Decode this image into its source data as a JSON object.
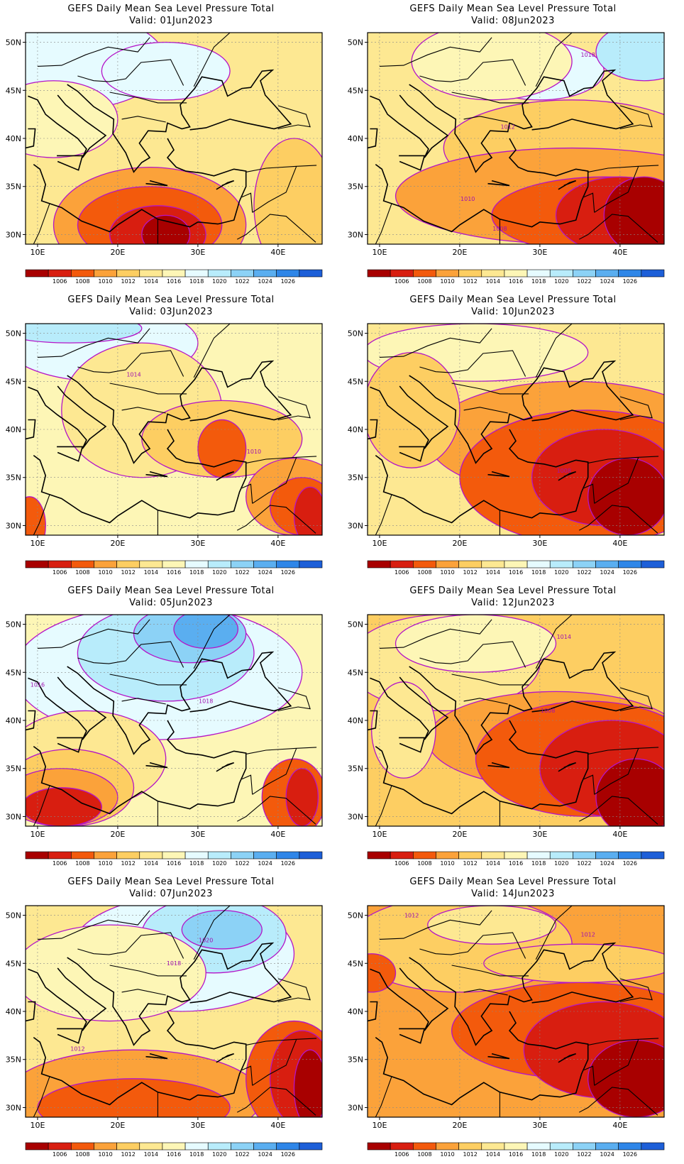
{
  "title_line": "GEFS Daily Mean Sea Level Pressure Total",
  "panels": [
    {
      "valid": "Valid: 01Jun2023",
      "labels": []
    },
    {
      "valid": "Valid: 08Jun2023",
      "labels": [
        "1018",
        "1012",
        "1010",
        "1008"
      ]
    },
    {
      "valid": "Valid: 03Jun2023",
      "labels": [
        "1014",
        "1010"
      ]
    },
    {
      "valid": "Valid: 10Jun2023",
      "labels": [
        "1008"
      ]
    },
    {
      "valid": "Valid: 05Jun2023",
      "labels": [
        "1016",
        "1018"
      ]
    },
    {
      "valid": "Valid: 12Jun2023",
      "labels": [
        "1014",
        "1008"
      ]
    },
    {
      "valid": "Valid: 07Jun2023",
      "labels": [
        "1020",
        "1018",
        "1012"
      ]
    },
    {
      "valid": "Valid: 14Jun2023",
      "labels": [
        "1012",
        "1012"
      ]
    }
  ],
  "lat_ticks": [
    "30N",
    "35N",
    "40N",
    "45N",
    "50N"
  ],
  "lon_ticks": [
    "10E",
    "20E",
    "30E",
    "40E"
  ],
  "colorbar": {
    "labels": [
      "1006",
      "1008",
      "1010",
      "1012",
      "1014",
      "1016",
      "1018",
      "1020",
      "1022",
      "1024",
      "1026"
    ],
    "colors": [
      "#a80000",
      "#d81e10",
      "#f35a0c",
      "#fba23a",
      "#fdce62",
      "#fde892",
      "#fdf6b6",
      "#e6fbff",
      "#b8ecfb",
      "#8cd2f6",
      "#5aaef0",
      "#2e86e8",
      "#1d5fd8"
    ]
  },
  "contour_color": "#b414c8"
}
